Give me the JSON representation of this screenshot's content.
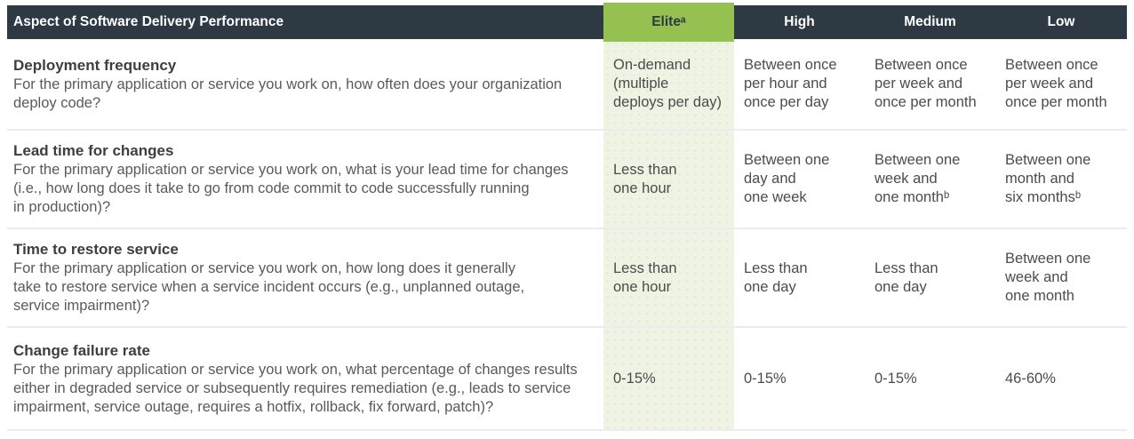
{
  "colors": {
    "header_bar": "#2d3a44",
    "elite_accent_green": "#94c14f",
    "elite_column_bg": "#eef3e3",
    "row_divider": "#ececec",
    "body_text": "#5a5a5a"
  },
  "chart_data": {
    "type": "table",
    "title": "Aspect of Software Delivery Performance",
    "columns": [
      "Aspect of Software Delivery Performance",
      "Eliteᵃ",
      "High",
      "Medium",
      "Low"
    ],
    "performance_levels": [
      "Elite",
      "High",
      "Medium",
      "Low"
    ],
    "footnote_markers": {
      "elite": "a",
      "one_month": "b",
      "six_months": "b"
    },
    "rows": [
      {
        "metric": "Deployment frequency",
        "question": "For the primary application or service you work on, how often does your organization\ndeploy code?",
        "elite": "On-demand\n(multiple\ndeploys per day)",
        "high": "Between once\nper hour and\nonce per day",
        "medium": "Between once\nper week and\nonce per month",
        "low": "Between once\nper week and\nonce per month"
      },
      {
        "metric": "Lead time for changes",
        "question": "For the primary application or service you work on, what is your lead time for changes\n(i.e., how long does it take to go from code commit to code successfully running\nin production)?",
        "elite": "Less than\none hour",
        "high": "Between one\nday and\none week",
        "medium": "Between one\nweek and\none monthᵇ",
        "low": "Between one\nmonth and\nsix monthsᵇ"
      },
      {
        "metric": "Time to restore service",
        "question": "For the primary application or service you work on, how long does it generally\ntake to restore service when a service incident occurs (e.g., unplanned outage,\nservice impairment)?",
        "elite": "Less than\none hour",
        "high": "Less than\none day",
        "medium": "Less than\none day",
        "low": "Between one\nweek and\none month"
      },
      {
        "metric": "Change failure rate",
        "question": "For the primary application or service you work on, what percentage of changes results\neither in degraded service or subsequently requires remediation (e.g., leads to service\nimpairment, service outage, requires a hotfix, rollback, fix forward, patch)?",
        "elite": "0-15%",
        "high": "0-15%",
        "medium": "0-15%",
        "low": "46-60%"
      }
    ]
  }
}
